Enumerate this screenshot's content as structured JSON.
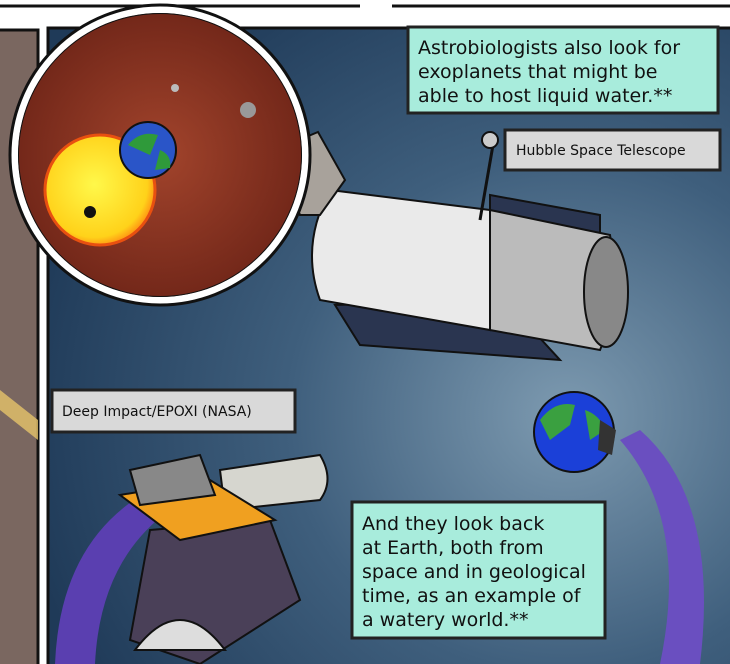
{
  "captions": [
    {
      "lines": [
        "Astrobiologists also look for",
        "exoplanets that might be",
        "able to host liquid water.**"
      ]
    },
    {
      "lines": [
        "And they look back",
        "at Earth, both from",
        "space and in geological",
        "time, as an example of",
        "a watery world.**"
      ]
    }
  ],
  "labels": [
    "Hubble Space Telescope",
    "Deep Impact/EPOXI (NASA)"
  ]
}
